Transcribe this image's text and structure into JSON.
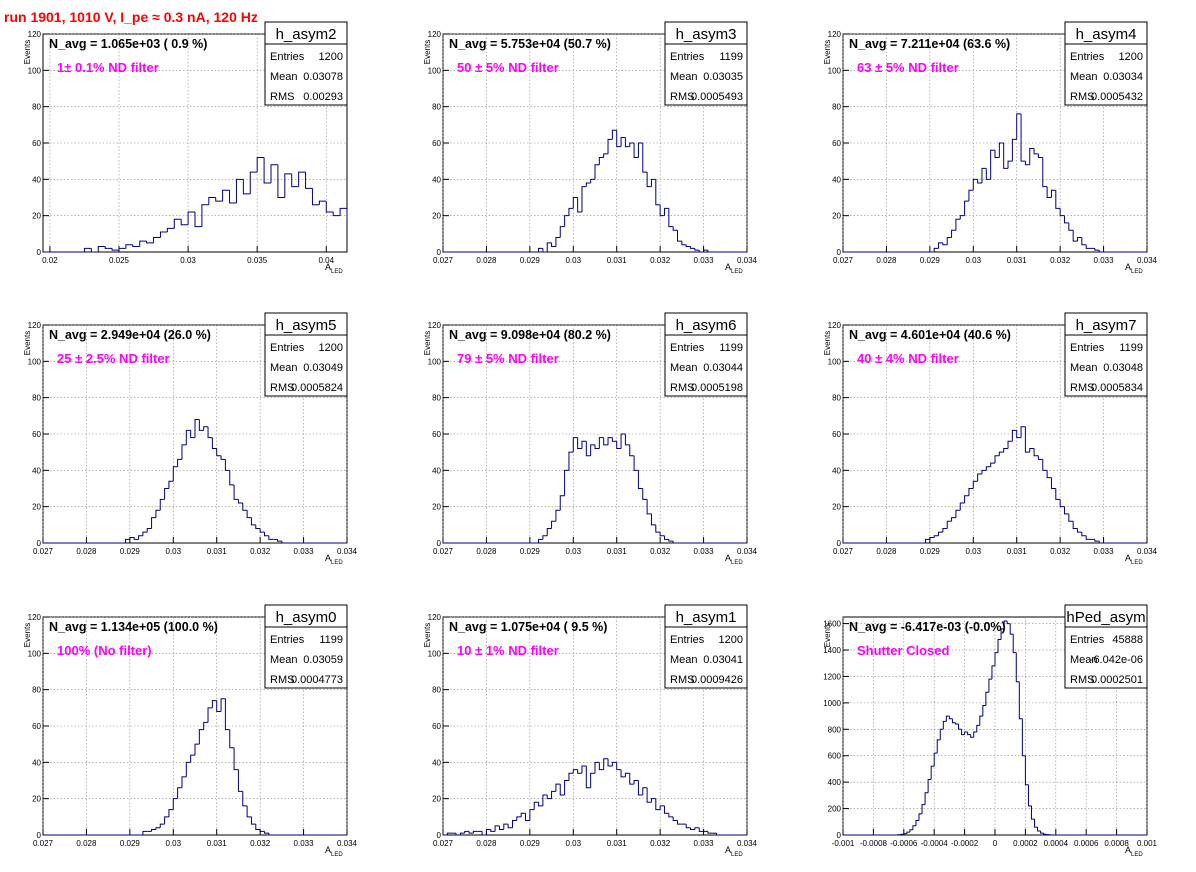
{
  "page": {
    "run_title": "run 1901,  1010 V, I_pe ≈ 0.3 nA, 120 Hz",
    "x_label_main": "A",
    "x_label_sub": "LED",
    "y_label": "Events",
    "stats_labels": [
      "Entries",
      "Mean",
      "RMS"
    ],
    "grid": true,
    "colors": {
      "line": "#000080",
      "annotation": "#ff00ff",
      "title": "#ff0000",
      "grid": "#888888",
      "frame": "#000000"
    }
  },
  "chart_data": [
    {
      "type": "histogram",
      "name": "h_asym2",
      "navg": "N_avg = 1.065e+03 ( 0.9 %)",
      "filter": "1± 0.1% ND filter",
      "stats": {
        "entries": "1200",
        "mean": "0.03078",
        "rms": "0.00293"
      },
      "xlim": [
        0.0195,
        0.0415
      ],
      "ylim": [
        0,
        120
      ],
      "x_ticks": [
        0.02,
        0.025,
        0.03,
        0.035,
        0.04
      ],
      "x_tick_labels": [
        "0.02",
        "0.025",
        "0.03",
        "0.035",
        "0.04"
      ],
      "y_ticks": [
        0,
        20,
        40,
        60,
        80,
        100,
        120
      ],
      "y_tick_labels": [
        "0",
        "20",
        "40",
        "60",
        "80",
        "100",
        "120"
      ],
      "bins": {
        "x0": 0.0195,
        "width": 0.0005,
        "counts": [
          0,
          0,
          0,
          0,
          0,
          0,
          2,
          0,
          3,
          2,
          1,
          2,
          4,
          3,
          6,
          5,
          8,
          11,
          13,
          18,
          15,
          22,
          14,
          26,
          30,
          28,
          34,
          27,
          40,
          32,
          44,
          52,
          38,
          48,
          30,
          43,
          36,
          44,
          35,
          26,
          28,
          22,
          20,
          24,
          18,
          16,
          12,
          14,
          10,
          8,
          7,
          6,
          4,
          3,
          3,
          2,
          1,
          1,
          0,
          0,
          0,
          0,
          0,
          0,
          0,
          0,
          0,
          0,
          0,
          0,
          0,
          0,
          0,
          0,
          0,
          0,
          0,
          0,
          0,
          0,
          0,
          0,
          0,
          0,
          0,
          0,
          0,
          0,
          0,
          0
        ]
      }
    },
    {
      "type": "histogram",
      "name": "h_asym3",
      "navg": "N_avg = 5.753e+04 (50.7 %)",
      "filter": "50 ± 5% ND filter",
      "stats": {
        "entries": "1199",
        "mean": "0.03035",
        "rms": "0.0005493"
      },
      "xlim": [
        0.027,
        0.034
      ],
      "ylim": [
        0,
        120
      ],
      "x_ticks": [
        0.027,
        0.028,
        0.029,
        0.03,
        0.031,
        0.032,
        0.033,
        0.034
      ],
      "x_tick_labels": [
        "0.027",
        "0.028",
        "0.029",
        "0.03",
        "0.031",
        "0.032",
        "0.033",
        "0.034"
      ],
      "y_ticks": [
        0,
        20,
        40,
        60,
        80,
        100,
        120
      ],
      "y_tick_labels": [
        "0",
        "20",
        "40",
        "60",
        "80",
        "100",
        "120"
      ],
      "bins": {
        "x0": 0.027,
        "width": 0.0001,
        "counts": [
          0,
          0,
          0,
          0,
          0,
          0,
          0,
          0,
          0,
          0,
          0,
          0,
          0,
          0,
          0,
          0,
          0,
          0,
          0,
          0,
          0,
          0,
          2,
          0,
          5,
          3,
          8,
          14,
          20,
          24,
          30,
          22,
          36,
          38,
          40,
          48,
          52,
          54,
          62,
          67,
          58,
          63,
          58,
          60,
          52,
          60,
          44,
          36,
          40,
          26,
          20,
          24,
          14,
          12,
          6,
          4,
          3,
          2,
          1,
          0,
          1,
          0,
          0,
          0,
          0,
          0,
          0,
          0,
          0,
          0
        ]
      }
    },
    {
      "type": "histogram",
      "name": "h_asym4",
      "navg": "N_avg = 7.211e+04 (63.6 %)",
      "filter": "63 ± 5% ND filter",
      "stats": {
        "entries": "1200",
        "mean": "0.03034",
        "rms": "0.0005432"
      },
      "xlim": [
        0.027,
        0.034
      ],
      "ylim": [
        0,
        120
      ],
      "x_ticks": [
        0.027,
        0.028,
        0.029,
        0.03,
        0.031,
        0.032,
        0.033,
        0.034
      ],
      "x_tick_labels": [
        "0.027",
        "0.028",
        "0.029",
        "0.03",
        "0.031",
        "0.032",
        "0.033",
        "0.034"
      ],
      "y_ticks": [
        0,
        20,
        40,
        60,
        80,
        100,
        120
      ],
      "y_tick_labels": [
        "0",
        "20",
        "40",
        "60",
        "80",
        "100",
        "120"
      ],
      "bins": {
        "x0": 0.027,
        "width": 0.0001,
        "counts": [
          0,
          0,
          0,
          0,
          0,
          0,
          0,
          0,
          0,
          0,
          0,
          0,
          0,
          0,
          0,
          0,
          0,
          0,
          0,
          0,
          0,
          2,
          5,
          4,
          8,
          12,
          18,
          20,
          28,
          34,
          40,
          38,
          46,
          40,
          56,
          52,
          60,
          46,
          50,
          62,
          76,
          50,
          48,
          57,
          54,
          52,
          36,
          30,
          34,
          24,
          20,
          16,
          12,
          6,
          8,
          4,
          2,
          2,
          1,
          0,
          0,
          0,
          0,
          0,
          0,
          0,
          0,
          0,
          0,
          0
        ]
      }
    },
    {
      "type": "histogram",
      "name": "h_asym5",
      "navg": "N_avg = 2.949e+04 (26.0 %)",
      "filter": "25 ± 2.5% ND filter",
      "stats": {
        "entries": "1200",
        "mean": "0.03049",
        "rms": "0.0005824"
      },
      "xlim": [
        0.027,
        0.034
      ],
      "ylim": [
        0,
        120
      ],
      "x_ticks": [
        0.027,
        0.028,
        0.029,
        0.03,
        0.031,
        0.032,
        0.033,
        0.034
      ],
      "x_tick_labels": [
        "0.027",
        "0.028",
        "0.029",
        "0.03",
        "0.031",
        "0.032",
        "0.033",
        "0.034"
      ],
      "y_ticks": [
        0,
        20,
        40,
        60,
        80,
        100,
        120
      ],
      "y_tick_labels": [
        "0",
        "20",
        "40",
        "60",
        "80",
        "100",
        "120"
      ],
      "bins": {
        "x0": 0.027,
        "width": 0.0001,
        "counts": [
          0,
          0,
          0,
          0,
          0,
          0,
          0,
          0,
          0,
          0,
          0,
          0,
          0,
          0,
          0,
          0,
          0,
          0,
          0,
          2,
          3,
          2,
          4,
          6,
          8,
          14,
          18,
          24,
          30,
          34,
          42,
          46,
          54,
          62,
          58,
          68,
          62,
          64,
          58,
          52,
          48,
          46,
          40,
          32,
          24,
          22,
          18,
          14,
          10,
          8,
          6,
          4,
          2,
          2,
          1,
          0,
          0,
          0,
          0,
          0,
          0,
          0,
          0,
          0,
          0,
          0,
          0,
          0,
          0,
          0
        ]
      }
    },
    {
      "type": "histogram",
      "name": "h_asym6",
      "navg": "N_avg = 9.098e+04 (80.2 %)",
      "filter": "79 ± 5% ND filter",
      "stats": {
        "entries": "1199",
        "mean": "0.03044",
        "rms": "0.0005198"
      },
      "xlim": [
        0.027,
        0.034
      ],
      "ylim": [
        0,
        120
      ],
      "x_ticks": [
        0.027,
        0.028,
        0.029,
        0.03,
        0.031,
        0.032,
        0.033,
        0.034
      ],
      "x_tick_labels": [
        "0.027",
        "0.028",
        "0.029",
        "0.03",
        "0.031",
        "0.032",
        "0.033",
        "0.034"
      ],
      "y_ticks": [
        0,
        20,
        40,
        60,
        80,
        100,
        120
      ],
      "y_tick_labels": [
        "0",
        "20",
        "40",
        "60",
        "80",
        "100",
        "120"
      ],
      "bins": {
        "x0": 0.027,
        "width": 0.0001,
        "counts": [
          0,
          0,
          0,
          0,
          0,
          0,
          0,
          0,
          0,
          0,
          0,
          0,
          0,
          0,
          0,
          0,
          0,
          0,
          0,
          0,
          0,
          0,
          2,
          4,
          8,
          12,
          18,
          26,
          40,
          50,
          58,
          52,
          56,
          48,
          54,
          52,
          58,
          54,
          58,
          56,
          52,
          60,
          54,
          48,
          40,
          30,
          24,
          16,
          10,
          6,
          4,
          2,
          1,
          0,
          0,
          0,
          0,
          0,
          0,
          0,
          0,
          0,
          0,
          0,
          0,
          0,
          0,
          0,
          0,
          0
        ]
      }
    },
    {
      "type": "histogram",
      "name": "h_asym7",
      "navg": "N_avg = 4.601e+04 (40.6 %)",
      "filter": "40 ± 4% ND filter",
      "stats": {
        "entries": "1199",
        "mean": "0.03048",
        "rms": "0.0005834"
      },
      "xlim": [
        0.027,
        0.034
      ],
      "ylim": [
        0,
        120
      ],
      "x_ticks": [
        0.027,
        0.028,
        0.029,
        0.03,
        0.031,
        0.032,
        0.033,
        0.034
      ],
      "x_tick_labels": [
        "0.027",
        "0.028",
        "0.029",
        "0.03",
        "0.031",
        "0.032",
        "0.033",
        "0.034"
      ],
      "y_ticks": [
        0,
        20,
        40,
        60,
        80,
        100,
        120
      ],
      "y_tick_labels": [
        "0",
        "20",
        "40",
        "60",
        "80",
        "100",
        "120"
      ],
      "bins": {
        "x0": 0.027,
        "width": 0.0001,
        "counts": [
          0,
          0,
          0,
          0,
          0,
          0,
          0,
          0,
          0,
          0,
          0,
          0,
          0,
          0,
          0,
          0,
          0,
          0,
          0,
          2,
          3,
          4,
          6,
          8,
          12,
          14,
          18,
          22,
          26,
          30,
          34,
          38,
          40,
          42,
          44,
          48,
          50,
          52,
          56,
          62,
          58,
          64,
          50,
          52,
          48,
          46,
          40,
          36,
          30,
          24,
          20,
          16,
          12,
          8,
          6,
          4,
          2,
          2,
          1,
          0,
          0,
          0,
          0,
          0,
          0,
          0,
          0,
          0,
          0,
          0
        ]
      }
    },
    {
      "type": "histogram",
      "name": "h_asym0",
      "navg": "N_avg = 1.134e+05 (100.0 %)",
      "filter": "100% (No filter)",
      "stats": {
        "entries": "1199",
        "mean": "0.03059",
        "rms": "0.0004773"
      },
      "xlim": [
        0.027,
        0.034
      ],
      "ylim": [
        0,
        120
      ],
      "x_ticks": [
        0.027,
        0.028,
        0.029,
        0.03,
        0.031,
        0.032,
        0.033,
        0.034
      ],
      "x_tick_labels": [
        "0.027",
        "0.028",
        "0.029",
        "0.03",
        "0.031",
        "0.032",
        "0.033",
        "0.034"
      ],
      "y_ticks": [
        0,
        20,
        40,
        60,
        80,
        100,
        120
      ],
      "y_tick_labels": [
        "0",
        "20",
        "40",
        "60",
        "80",
        "100",
        "120"
      ],
      "bins": {
        "x0": 0.027,
        "width": 0.0001,
        "counts": [
          0,
          0,
          0,
          0,
          0,
          0,
          0,
          0,
          0,
          0,
          0,
          0,
          0,
          0,
          0,
          0,
          0,
          0,
          0,
          0,
          0,
          0,
          0,
          2,
          2,
          3,
          4,
          6,
          10,
          14,
          20,
          26,
          32,
          40,
          44,
          50,
          58,
          62,
          70,
          74,
          68,
          75,
          58,
          48,
          36,
          24,
          16,
          10,
          6,
          3,
          2,
          1,
          0,
          0,
          0,
          0,
          0,
          0,
          0,
          0,
          0,
          0,
          0,
          0,
          0,
          0,
          0,
          0,
          0,
          0
        ]
      }
    },
    {
      "type": "histogram",
      "name": "h_asym1",
      "navg": "N_avg = 1.075e+04 ( 9.5 %)",
      "filter": "10 ± 1% ND filter",
      "stats": {
        "entries": "1200",
        "mean": "0.03041",
        "rms": "0.0009426"
      },
      "xlim": [
        0.027,
        0.034
      ],
      "ylim": [
        0,
        120
      ],
      "x_ticks": [
        0.027,
        0.028,
        0.029,
        0.03,
        0.031,
        0.032,
        0.033,
        0.034
      ],
      "x_tick_labels": [
        "0.027",
        "0.028",
        "0.029",
        "0.03",
        "0.031",
        "0.032",
        "0.033",
        "0.034"
      ],
      "y_ticks": [
        0,
        20,
        40,
        60,
        80,
        100,
        120
      ],
      "y_tick_labels": [
        "0",
        "20",
        "40",
        "60",
        "80",
        "100",
        "120"
      ],
      "bins": {
        "x0": 0.027,
        "width": 0.0001,
        "counts": [
          0,
          1,
          1,
          0,
          1,
          2,
          1,
          2,
          2,
          0,
          3,
          2,
          5,
          3,
          6,
          4,
          8,
          10,
          12,
          8,
          14,
          18,
          16,
          22,
          20,
          24,
          28,
          22,
          30,
          34,
          36,
          34,
          38,
          26,
          34,
          40,
          36,
          42,
          38,
          40,
          36,
          32,
          34,
          28,
          30,
          22,
          26,
          18,
          20,
          14,
          16,
          12,
          10,
          8,
          6,
          6,
          4,
          3,
          4,
          2,
          2,
          1,
          1,
          0,
          0,
          0,
          0,
          0,
          0,
          0
        ]
      }
    },
    {
      "type": "histogram",
      "name": "hPed_asym",
      "navg": "N_avg = -6.417e-03 (-0.0%)",
      "filter": "Shutter Closed",
      "stats": {
        "entries": "45888",
        "mean": "-6.042e-06",
        "rms": "0.0002501"
      },
      "xlim": [
        -0.001,
        0.001
      ],
      "ylim": [
        0,
        1650
      ],
      "x_ticks": [
        -0.001,
        -0.0008,
        -0.0006,
        -0.0004,
        -0.0002,
        0,
        0.0002,
        0.0004,
        0.0006,
        0.0008,
        0.001
      ],
      "x_tick_labels": [
        "-0.001",
        "-0.0008",
        "-0.0006",
        "-0.0004",
        "-0.0002",
        "0",
        "0.0002",
        "0.0004",
        "0.0006",
        "0.0008",
        "0.001"
      ],
      "y_ticks": [
        0,
        200,
        400,
        600,
        800,
        1000,
        1200,
        1400,
        1600
      ],
      "y_tick_labels": [
        "0",
        "200",
        "400",
        "600",
        "800",
        "1000",
        "1200",
        "1400",
        "1600"
      ],
      "bins": {
        "x0": -0.001,
        "width": 2e-05,
        "counts": [
          0,
          0,
          0,
          0,
          0,
          0,
          0,
          0,
          0,
          0,
          0,
          0,
          0,
          0,
          0,
          0,
          0,
          0,
          2,
          5,
          10,
          22,
          40,
          70,
          110,
          160,
          230,
          320,
          420,
          520,
          620,
          720,
          800,
          860,
          900,
          880,
          850,
          840,
          800,
          760,
          780,
          760,
          740,
          780,
          830,
          900,
          980,
          1080,
          1180,
          1280,
          1380,
          1480,
          1560,
          1620,
          1600,
          1520,
          1380,
          1160,
          880,
          600,
          380,
          220,
          120,
          60,
          30,
          14,
          6,
          3,
          1,
          0,
          0,
          0,
          0,
          0,
          0,
          0,
          0,
          0,
          0,
          0,
          0,
          0,
          0,
          0,
          0,
          0,
          0,
          0,
          0,
          0,
          0,
          0,
          0,
          0,
          0,
          0,
          0,
          0,
          0,
          0
        ]
      }
    }
  ]
}
